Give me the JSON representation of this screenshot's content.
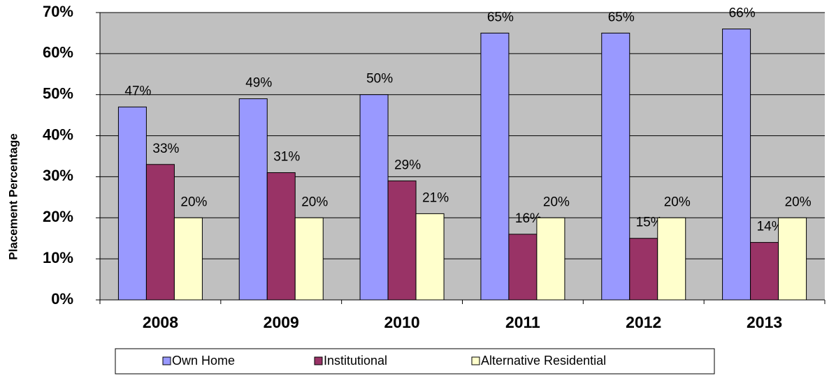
{
  "chart_data": {
    "type": "bar",
    "y_axis_label": "Placement Percentage",
    "categories": [
      "2008",
      "2009",
      "2010",
      "2011",
      "2012",
      "2013"
    ],
    "series": [
      {
        "name": "Own Home",
        "color": "#9999ff",
        "values": [
          47,
          49,
          50,
          65,
          65,
          66
        ],
        "value_labels": [
          "47%",
          "49%",
          "50%",
          "65%",
          "65%",
          "66%"
        ]
      },
      {
        "name": "Institutional",
        "color": "#993366",
        "values": [
          33,
          31,
          29,
          16,
          15,
          14
        ],
        "value_labels": [
          "33%",
          "31%",
          "29%",
          "16%",
          "15%",
          "14%"
        ]
      },
      {
        "name": "Alternative Residential",
        "color": "#ffffcc",
        "values": [
          20,
          20,
          21,
          20,
          20,
          20
        ],
        "value_labels": [
          "20%",
          "20%",
          "21%",
          "20%",
          "20%",
          "20%"
        ]
      }
    ],
    "ylim": [
      0,
      70
    ],
    "yticks": [
      {
        "value": 0,
        "label": "0%"
      },
      {
        "value": 10,
        "label": "10%"
      },
      {
        "value": 20,
        "label": "20%"
      },
      {
        "value": 30,
        "label": "30%"
      },
      {
        "value": 40,
        "label": "40%"
      },
      {
        "value": 50,
        "label": "50%"
      },
      {
        "value": 60,
        "label": "60%"
      },
      {
        "value": 70,
        "label": "70%"
      }
    ],
    "grid": true,
    "legend": "bottom"
  }
}
